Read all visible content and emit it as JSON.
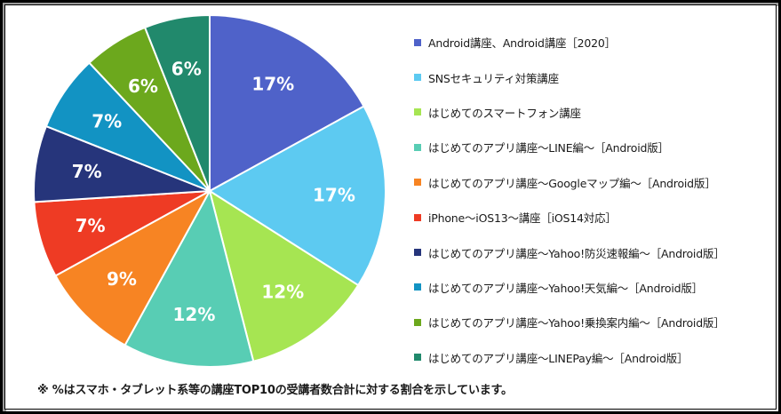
{
  "chart_data": {
    "type": "pie",
    "categories": [
      "Android講座、Android講座［2020］",
      "SNSセキュリティ対策講座",
      "はじめてのスマートフォン講座",
      "はじめてのアプリ講座～LINE編～［Android版］",
      "はじめてのアプリ講座～Googleマップ編～［Android版］",
      "iPhone～iOS13～講座［iOS14対応］",
      "はじめてのアプリ講座～Yahoo!防災速報編～［Android版］",
      "はじめてのアプリ講座～Yahoo!天気編～［Android版］",
      "はじめてのアプリ講座～Yahoo!乗換案内編～［Android版］",
      "はじめてのアプリ講座～LINEPay編～［Android版］"
    ],
    "values": [
      17,
      17,
      12,
      12,
      9,
      7,
      7,
      7,
      6,
      6
    ],
    "value_labels": [
      "17%",
      "17%",
      "12%",
      "12%",
      "9%",
      "7%",
      "7%",
      "7%",
      "6%",
      "6%"
    ],
    "colors": [
      "#4f62c9",
      "#5dcaf1",
      "#a6e552",
      "#58cdb4",
      "#f78423",
      "#ee3b24",
      "#26357b",
      "#1293c3",
      "#6ca81d",
      "#21896c"
    ],
    "legend": "right",
    "footnote": "※ %はスマホ・タブレット系等の講座TOP10の受講者数合計に対する割合を示しています。"
  }
}
